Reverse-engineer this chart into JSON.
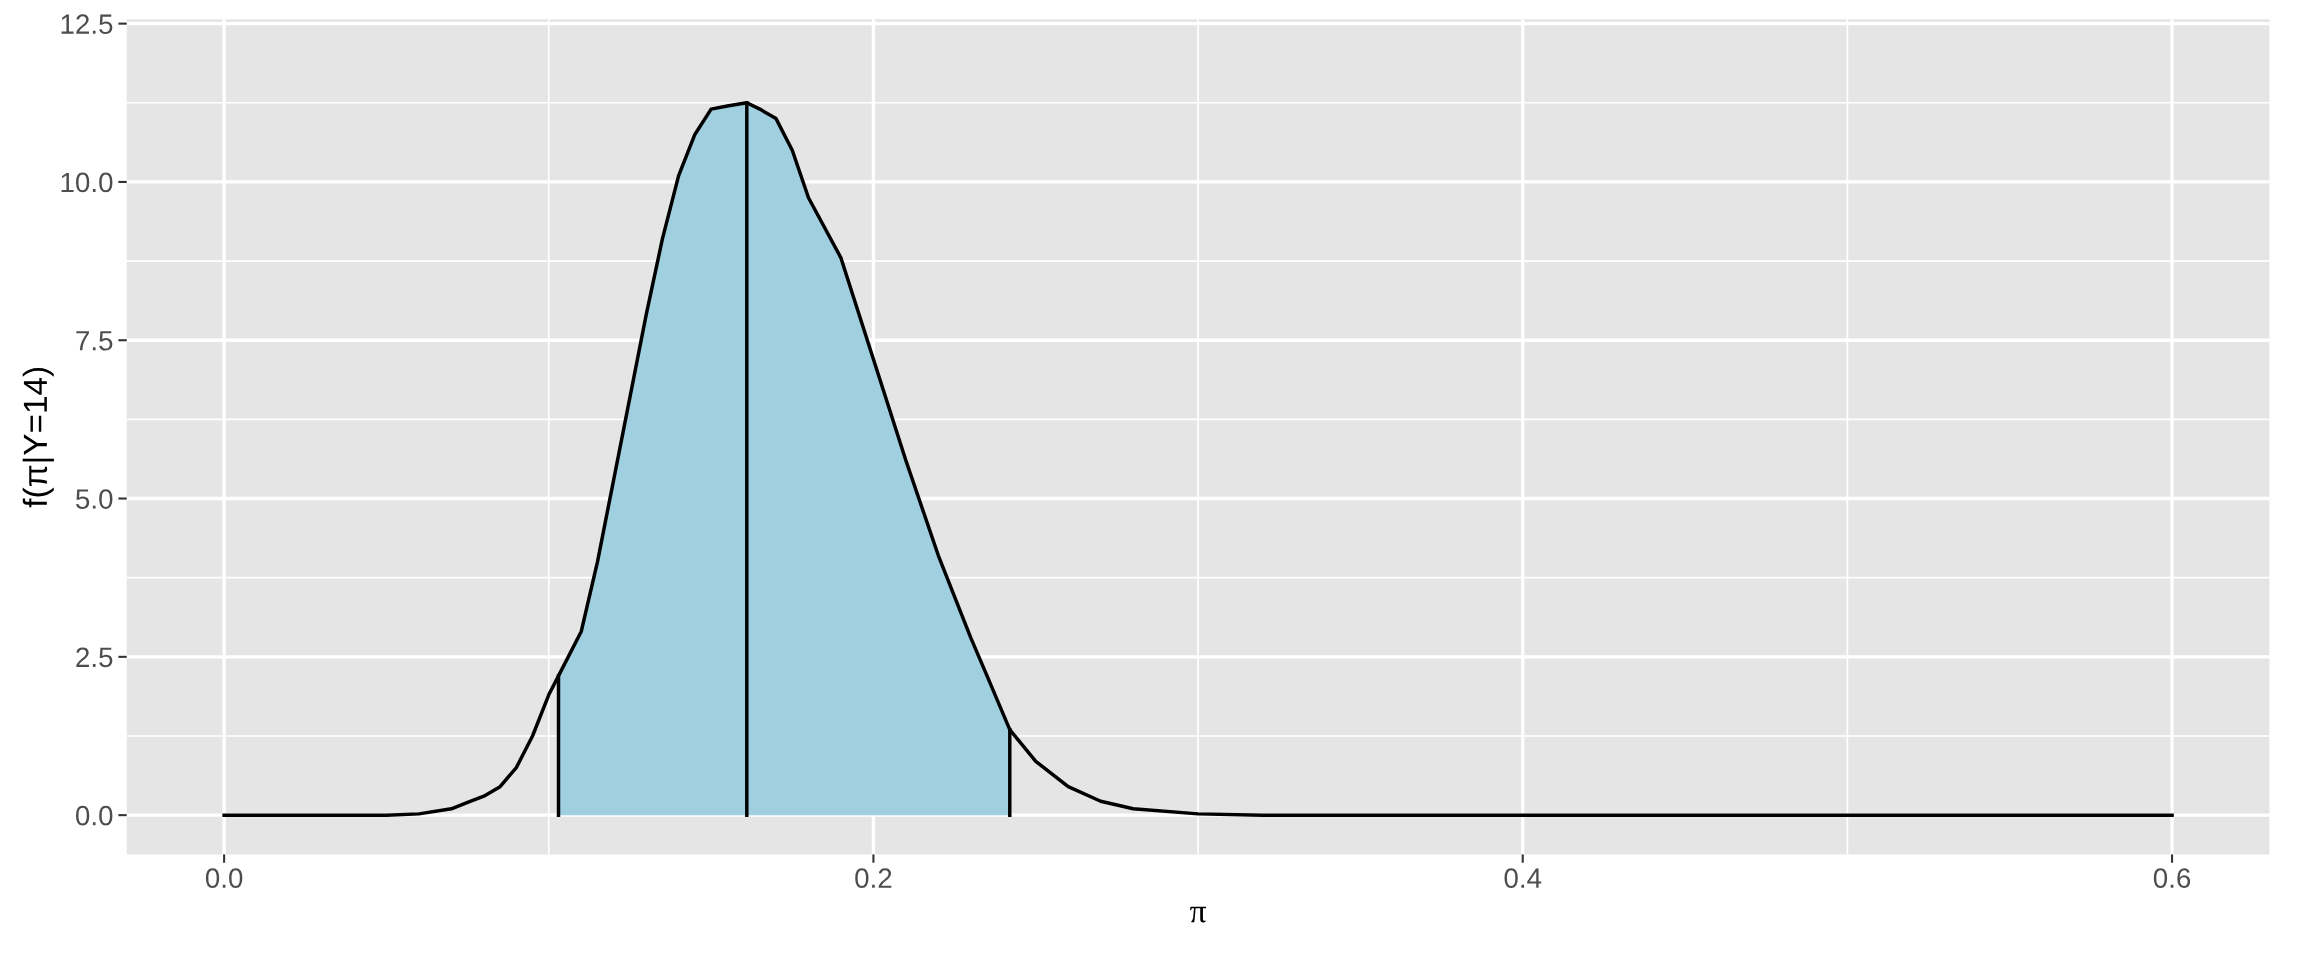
{
  "chart_data": {
    "type": "line",
    "xlabel": "π",
    "ylabel": "f(π|Y=14)",
    "xlim": [
      -0.03,
      0.63
    ],
    "ylim": [
      -0.62,
      12.57
    ],
    "xticks": [
      {
        "value": 0,
        "label": "0.0"
      },
      0.2,
      0.4,
      0.6
    ],
    "yticks": [
      {
        "value": 0,
        "label": "0.0"
      },
      2.5,
      {
        "value": 5,
        "label": "5.0"
      },
      7.5,
      {
        "value": 10,
        "label": "10.0"
      },
      12.5
    ],
    "grid": true,
    "marker": "none",
    "line_style": "solid",
    "series": [
      {
        "type": "area",
        "color": "#a0cfe0",
        "x": [
          0.103,
          0.11,
          0.115,
          0.12,
          0.13,
          0.135,
          0.14,
          0.145,
          0.15,
          0.155,
          0.161,
          0.165,
          0.17,
          0.175,
          0.18,
          0.19,
          0.2,
          0.21,
          0.22,
          0.23,
          0.235,
          0.242
        ],
        "values": [
          2.2,
          2.9,
          4.0,
          5.3,
          7.9,
          9.1,
          10.1,
          10.75,
          11.15,
          11.2,
          11.25,
          11.15,
          11.0,
          10.5,
          9.75,
          8.8,
          7.2,
          5.6,
          4.1,
          2.8,
          2.2,
          1.35
        ]
      },
      {
        "color": "#000000",
        "x": [
          0.0,
          0.05,
          0.06,
          0.07,
          0.075,
          0.08,
          0.085,
          0.09,
          0.095,
          0.1,
          0.103,
          0.11,
          0.115,
          0.12,
          0.13,
          0.135,
          0.14,
          0.145,
          0.15,
          0.155,
          0.161,
          0.165,
          0.17,
          0.175,
          0.18,
          0.19,
          0.2,
          0.21,
          0.22,
          0.23,
          0.235,
          0.242,
          0.25,
          0.26,
          0.27,
          0.28,
          0.3,
          0.32,
          0.6
        ],
        "values": [
          0,
          0,
          0.02,
          0.1,
          0.2,
          0.3,
          0.45,
          0.75,
          1.25,
          1.9,
          2.2,
          2.9,
          4.0,
          5.3,
          7.9,
          9.1,
          10.1,
          10.75,
          11.15,
          11.2,
          11.25,
          11.15,
          11.0,
          10.5,
          9.75,
          8.8,
          7.2,
          5.6,
          4.1,
          2.8,
          2.2,
          1.35,
          0.85,
          0.45,
          0.22,
          0.1,
          0.02,
          0,
          0
        ]
      },
      {
        "color": "#000000",
        "x": [
          0.161,
          0.161
        ],
        "values": [
          0,
          11.25
        ]
      },
      {
        "color": "#000000",
        "x": [
          0.103,
          0.103
        ],
        "values": [
          0,
          2.2
        ]
      },
      {
        "color": "#000000",
        "x": [
          0.242,
          0.242
        ],
        "values": [
          0,
          1.35
        ]
      }
    ]
  }
}
